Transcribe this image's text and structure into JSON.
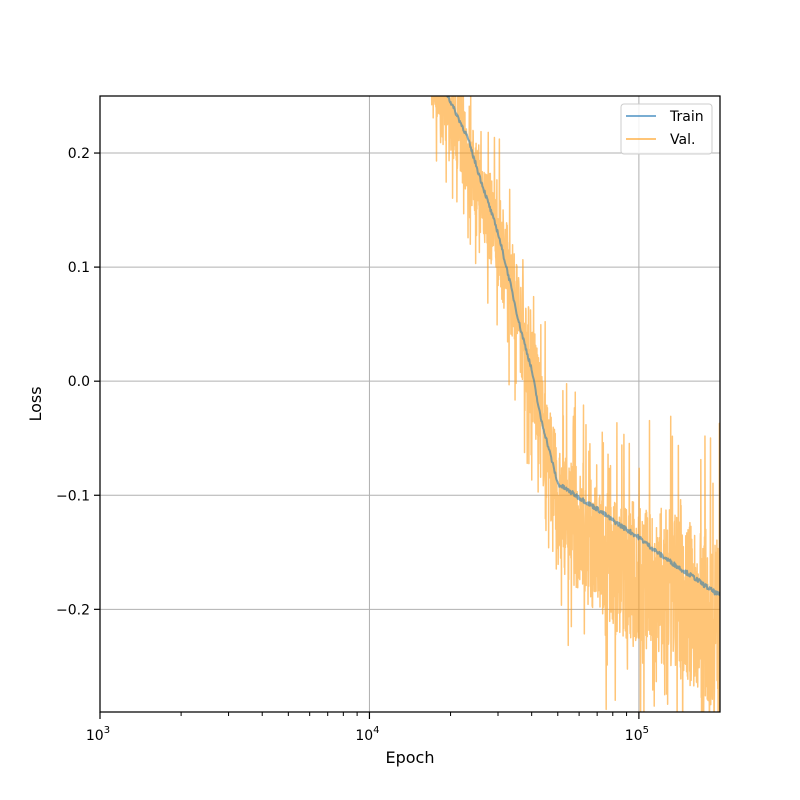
{
  "chart_data": {
    "type": "line",
    "xlabel": "Epoch",
    "ylabel": "Loss",
    "x_scale": "log",
    "xlim": [
      1000,
      200000
    ],
    "ylim": [
      -0.29,
      0.25
    ],
    "x_ticks": [
      {
        "value": 1000,
        "base": "10",
        "exp": "3"
      },
      {
        "value": 10000,
        "base": "10",
        "exp": "4"
      },
      {
        "value": 100000,
        "base": "10",
        "exp": "5"
      }
    ],
    "y_ticks": [
      {
        "value": 0.2,
        "label": "0.2"
      },
      {
        "value": 0.1,
        "label": "0.1"
      },
      {
        "value": 0.0,
        "label": "0.0"
      },
      {
        "value": -0.1,
        "label": "−0.1"
      },
      {
        "value": -0.2,
        "label": "−0.2"
      }
    ],
    "grid": true,
    "legend_position": "top-right",
    "series": [
      {
        "name": "Train",
        "color": "#1f77b4",
        "x": [
          17000,
          20000,
          23000,
          26000,
          30000,
          33000,
          36000,
          40000,
          43000,
          47000,
          50000,
          60000,
          70000,
          80000,
          100000,
          120000,
          140000,
          160000,
          180000,
          200000
        ],
        "y": [
          0.28,
          0.245,
          0.215,
          0.175,
          0.13,
          0.09,
          0.05,
          0.01,
          -0.03,
          -0.065,
          -0.09,
          -0.102,
          -0.112,
          -0.122,
          -0.137,
          -0.152,
          -0.163,
          -0.172,
          -0.181,
          -0.188
        ]
      },
      {
        "name": "Val.",
        "color": "#ff9f1c",
        "x": [
          17000,
          20000,
          23000,
          26000,
          30000,
          33000,
          36000,
          40000,
          43000,
          47000,
          50000,
          60000,
          70000,
          80000,
          100000,
          120000,
          140000,
          160000,
          180000,
          200000
        ],
        "y": [
          0.26,
          0.235,
          0.2,
          0.165,
          0.125,
          0.09,
          0.055,
          0.01,
          -0.035,
          -0.07,
          -0.11,
          -0.13,
          -0.15,
          -0.16,
          -0.17,
          -0.18,
          -0.19,
          -0.2,
          -0.205,
          -0.21
        ]
      }
    ]
  }
}
